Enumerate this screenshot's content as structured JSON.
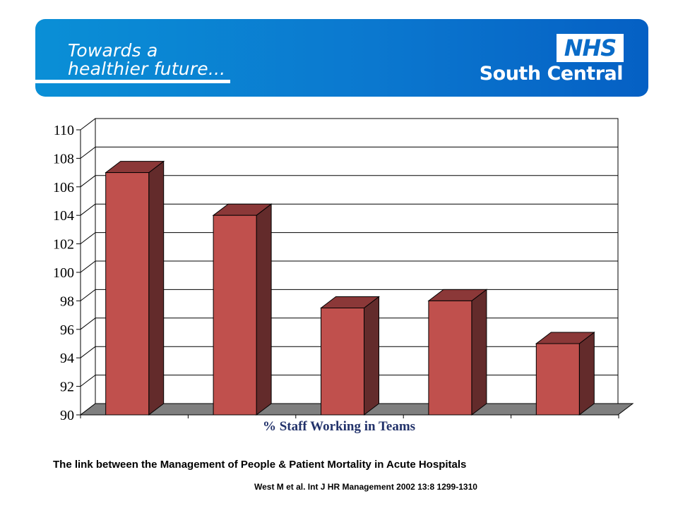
{
  "banner": {
    "tagline_line1": "Towards a",
    "tagline_line2": "healthier future...",
    "logo": "NHS",
    "region": "South Central",
    "colors": {
      "banner": "#0b78cf",
      "text": "#ffffff"
    }
  },
  "chart_data": {
    "type": "bar",
    "style": "3d",
    "categories": [
      "",
      "",
      "",
      "",
      ""
    ],
    "values": [
      107,
      104,
      97.5,
      98,
      95
    ],
    "title": "",
    "xlabel": "% Staff Working in Teams",
    "ylabel": "",
    "ylim": [
      90,
      110
    ],
    "yticks": [
      "90",
      "92",
      "94",
      "96",
      "98",
      "100",
      "102",
      "104",
      "106",
      "108",
      "110"
    ],
    "grid": true,
    "legend": "none",
    "colors": {
      "bar_front": "#c0504d",
      "bar_side": "#632b2b",
      "bar_top": "#8b3838",
      "floor": "#7f7f7f"
    }
  },
  "caption": "The link between the Management of People & Patient Mortality in Acute Hospitals",
  "citation": "West M et al. Int J HR Management 2002 13:8 1299-1310"
}
